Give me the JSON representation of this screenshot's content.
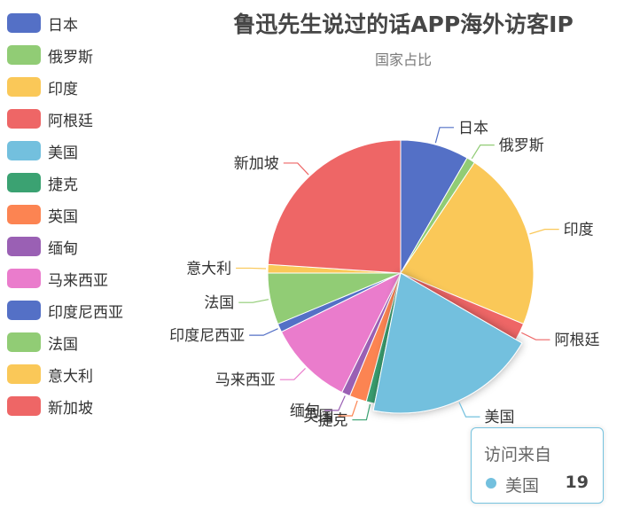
{
  "chart_data": {
    "type": "pie",
    "title": "鲁迅先生说过的话APP海外访客IP",
    "subtitle": "国家占比",
    "legend_position": "left",
    "slices": [
      {
        "name": "日本",
        "value": 8,
        "color": "#5470c6"
      },
      {
        "name": "俄罗斯",
        "value": 1,
        "color": "#91cc75"
      },
      {
        "name": "印度",
        "value": 21,
        "color": "#fac858"
      },
      {
        "name": "阿根廷",
        "value": 2,
        "color": "#ee6666"
      },
      {
        "name": "美国",
        "value": 19,
        "color": "#73c0de",
        "emphasized": true
      },
      {
        "name": "捷克",
        "value": 1,
        "color": "#3ba272"
      },
      {
        "name": "英国",
        "value": 2,
        "color": "#fc8452"
      },
      {
        "name": "缅甸",
        "value": 1,
        "color": "#9a60b4"
      },
      {
        "name": "马来西亚",
        "value": 10,
        "color": "#ea7ccc"
      },
      {
        "name": "印度尼西亚",
        "value": 1,
        "color": "#5470c6"
      },
      {
        "name": "法国",
        "value": 6,
        "color": "#91cc75"
      },
      {
        "name": "意大利",
        "value": 1,
        "color": "#fac858"
      },
      {
        "name": "新加坡",
        "value": 23,
        "color": "#ee6666"
      }
    ]
  },
  "tooltip": {
    "title": "访问来自",
    "name": "美国",
    "value": "19",
    "color": "#73c0de"
  }
}
